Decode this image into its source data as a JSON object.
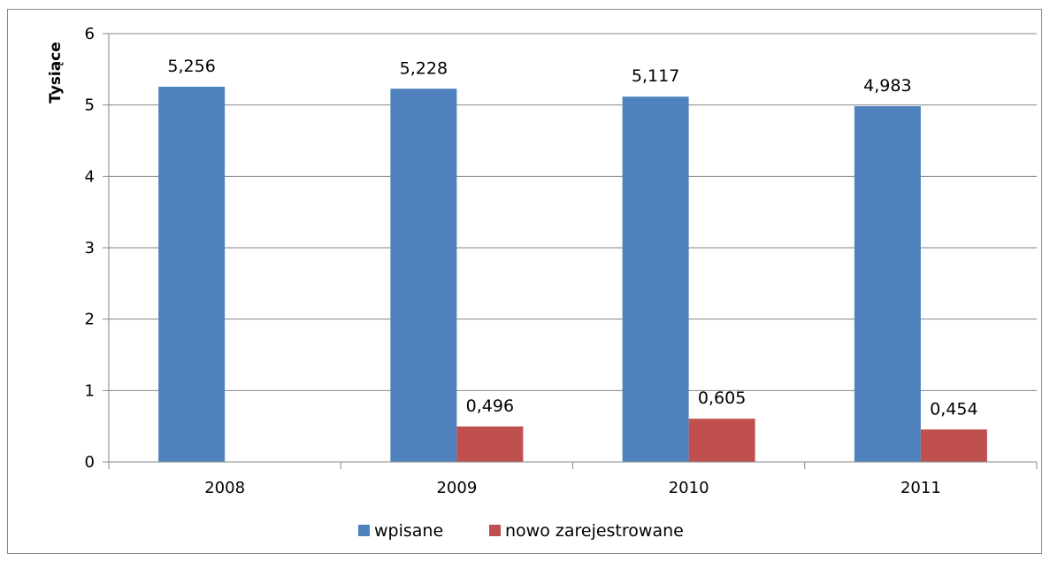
{
  "chart_data": {
    "type": "bar",
    "title": "",
    "xlabel": "",
    "ylabel": "Tysiące",
    "categories": [
      "2008",
      "2009",
      "2010",
      "2011"
    ],
    "series": [
      {
        "name": "wpisane",
        "color": "#4f81bd",
        "values": [
          5.256,
          5.228,
          5.117,
          4.983
        ],
        "labels": [
          "5,256",
          "5,228",
          "5,117",
          "4,983"
        ]
      },
      {
        "name": "nowo zarejestrowane",
        "color": "#c0504d",
        "values": [
          null,
          0.496,
          0.605,
          0.454
        ],
        "labels": [
          "",
          "0,496",
          "0,605",
          "0,454"
        ]
      }
    ],
    "ylim": [
      0,
      6
    ],
    "yticks": [
      "0",
      "1",
      "2",
      "3",
      "4",
      "5",
      "6"
    ],
    "grid": true,
    "legend_position": "bottom"
  }
}
